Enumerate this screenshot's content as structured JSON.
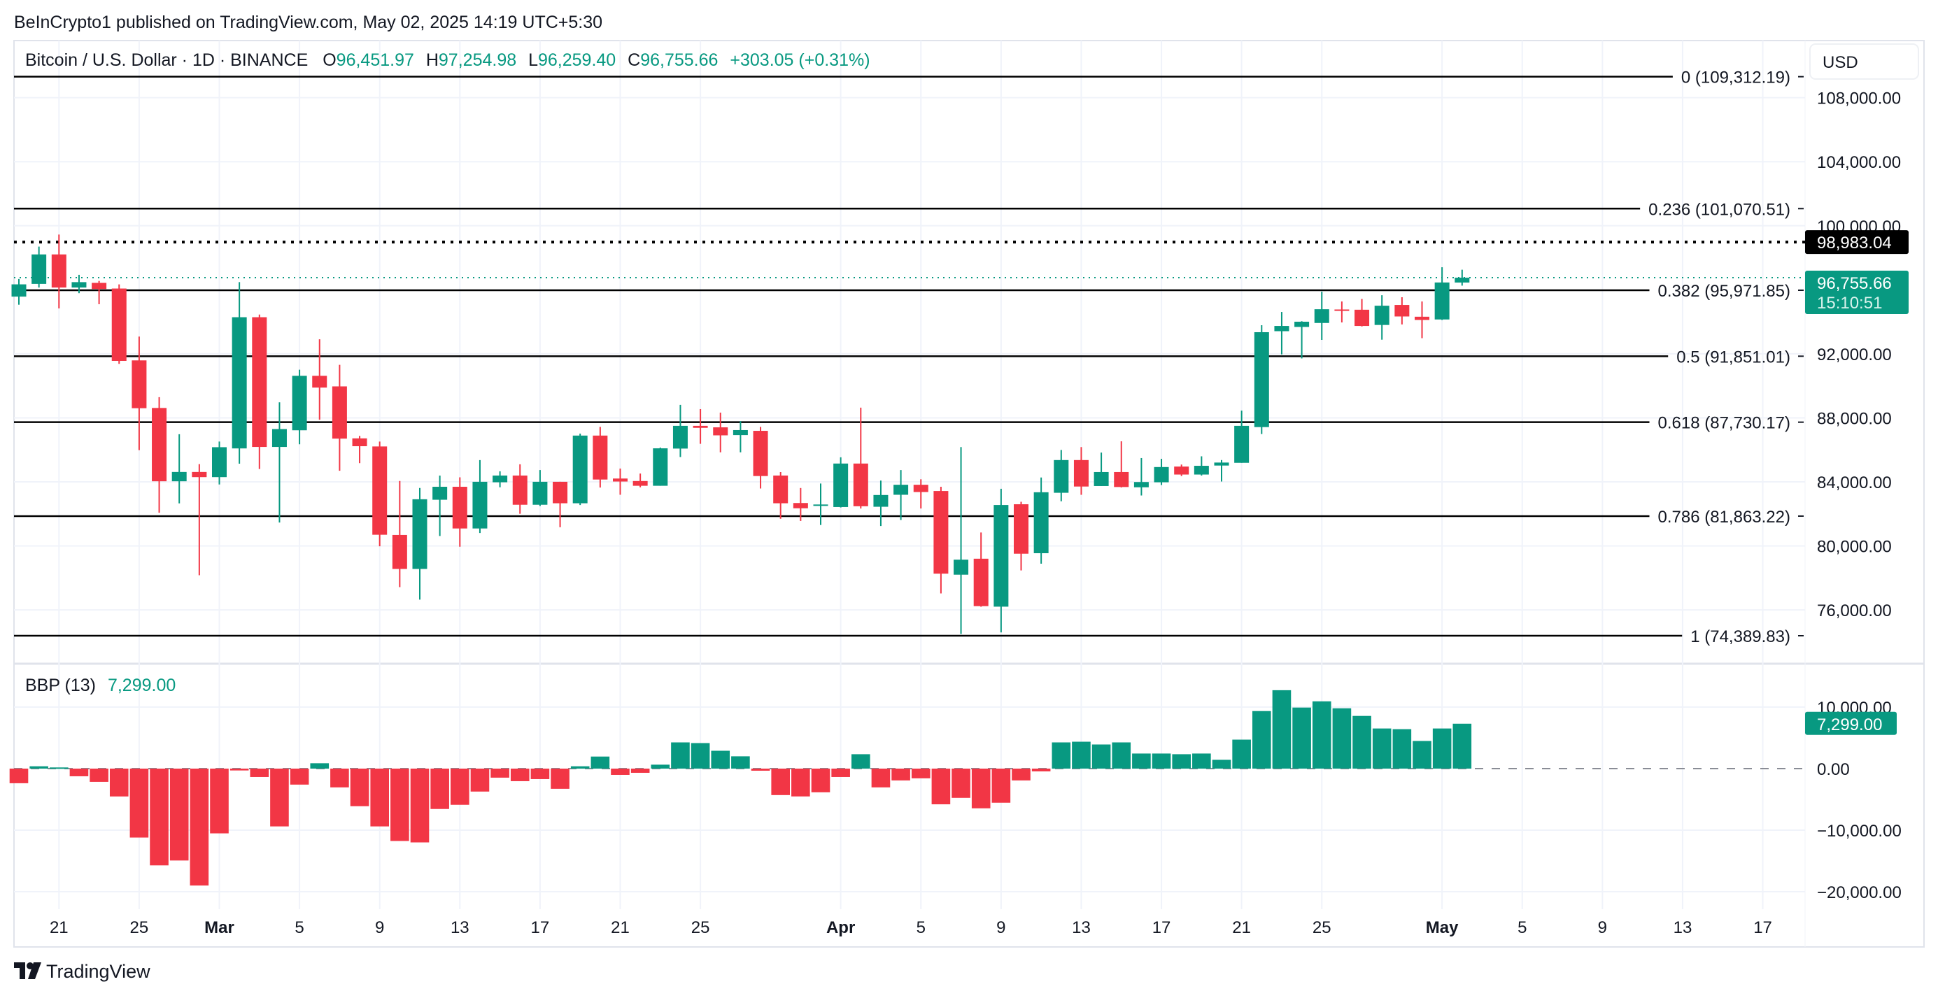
{
  "header": {
    "published": "BeInCrypto1 published on TradingView.com, May 02, 2025 14:19 UTC+5:30"
  },
  "legend": {
    "symbol": "Bitcoin / U.S. Dollar · 1D · BINANCE",
    "o_label": "O",
    "o_value": "96,451.97",
    "h_label": "H",
    "h_value": "97,254.98",
    "l_label": "L",
    "l_value": "96,259.40",
    "c_label": "C",
    "c_value": "96,755.66",
    "change": "+303.05 (+0.31%)"
  },
  "currency_button": "USD",
  "price_labels": {
    "dotted_level": "98,983.04",
    "last_price": "96,755.66",
    "countdown": "15:10:51"
  },
  "indicator": {
    "name": "BBP (13)",
    "value": "7,299.00",
    "last_label": "7,299.00"
  },
  "footer": {
    "logo_text": "TradingView"
  },
  "colors": {
    "up": "#089981",
    "down": "#f23645",
    "fib_line": "#000000",
    "grid": "#f0f3fa"
  },
  "chart_data": [
    {
      "type": "candlestick",
      "title": "Bitcoin / U.S. Dollar · 1D · BINANCE",
      "ylim": [
        73000,
        111000
      ],
      "y_ticks": [
        108000,
        104000,
        100000,
        92000,
        88000,
        84000,
        80000,
        76000
      ],
      "y_tick_labels": [
        "108,000.00",
        "104,000.00",
        "100,000.00",
        "92,000.00",
        "88,000.00",
        "84,000.00",
        "80,000.00",
        "76,000.00"
      ],
      "x_tick_labels": [
        {
          "label": "21",
          "date": "2025-02-21"
        },
        {
          "label": "25",
          "date": "2025-02-25"
        },
        {
          "label": "Mar",
          "date": "2025-03-01",
          "bold": true
        },
        {
          "label": "5",
          "date": "2025-03-05"
        },
        {
          "label": "9",
          "date": "2025-03-09"
        },
        {
          "label": "13",
          "date": "2025-03-13"
        },
        {
          "label": "17",
          "date": "2025-03-17"
        },
        {
          "label": "21",
          "date": "2025-03-21"
        },
        {
          "label": "25",
          "date": "2025-03-25"
        },
        {
          "label": "Apr",
          "date": "2025-04-01",
          "bold": true
        },
        {
          "label": "5",
          "date": "2025-04-05"
        },
        {
          "label": "9",
          "date": "2025-04-09"
        },
        {
          "label": "13",
          "date": "2025-04-13"
        },
        {
          "label": "17",
          "date": "2025-04-17"
        },
        {
          "label": "21",
          "date": "2025-04-21"
        },
        {
          "label": "25",
          "date": "2025-04-25"
        },
        {
          "label": "May",
          "date": "2025-05-01",
          "bold": true
        },
        {
          "label": "5",
          "date": "2025-05-05"
        },
        {
          "label": "9",
          "date": "2025-05-09"
        },
        {
          "label": "13",
          "date": "2025-05-13"
        },
        {
          "label": "17",
          "date": "2025-05-17"
        }
      ],
      "fib_levels": [
        {
          "label": "0 (109,312.19)",
          "price": 109312.19
        },
        {
          "label": "0.236 (101,070.51)",
          "price": 101070.51
        },
        {
          "label": "0.382 (95,971.85)",
          "price": 95971.85
        },
        {
          "label": "0.5 (91,851.01)",
          "price": 91851.01
        },
        {
          "label": "0.618 (87,730.17)",
          "price": 87730.17
        },
        {
          "label": "0.786 (81,863.22)",
          "price": 81863.22
        },
        {
          "label": "1 (74,389.83)",
          "price": 74389.83
        }
      ],
      "dotted_level_price": 98983.04,
      "last_price": 96755.66,
      "dates": [
        "2025-02-19",
        "2025-02-20",
        "2025-02-21",
        "2025-02-22",
        "2025-02-23",
        "2025-02-24",
        "2025-02-25",
        "2025-02-26",
        "2025-02-27",
        "2025-02-28",
        "2025-03-01",
        "2025-03-02",
        "2025-03-03",
        "2025-03-04",
        "2025-03-05",
        "2025-03-06",
        "2025-03-07",
        "2025-03-08",
        "2025-03-09",
        "2025-03-10",
        "2025-03-11",
        "2025-03-12",
        "2025-03-13",
        "2025-03-14",
        "2025-03-15",
        "2025-03-16",
        "2025-03-17",
        "2025-03-18",
        "2025-03-19",
        "2025-03-20",
        "2025-03-21",
        "2025-03-22",
        "2025-03-23",
        "2025-03-24",
        "2025-03-25",
        "2025-03-26",
        "2025-03-27",
        "2025-03-28",
        "2025-03-29",
        "2025-03-30",
        "2025-03-31",
        "2025-04-01",
        "2025-04-02",
        "2025-04-03",
        "2025-04-04",
        "2025-04-05",
        "2025-04-06",
        "2025-04-07",
        "2025-04-08",
        "2025-04-09",
        "2025-04-10",
        "2025-04-11",
        "2025-04-12",
        "2025-04-13",
        "2025-04-14",
        "2025-04-15",
        "2025-04-16",
        "2025-04-17",
        "2025-04-18",
        "2025-04-19",
        "2025-04-20",
        "2025-04-21",
        "2025-04-22",
        "2025-04-23",
        "2025-04-24",
        "2025-04-25",
        "2025-04-26",
        "2025-04-27",
        "2025-04-28",
        "2025-04-29",
        "2025-04-30",
        "2025-05-01",
        "2025-05-02"
      ],
      "ohlc_order": [
        "open",
        "high",
        "low",
        "close"
      ],
      "ohlc": [
        [
          95574,
          96677,
          95068,
          96340
        ],
        [
          96370,
          98699,
          96140,
          98209
        ],
        [
          98209,
          99450,
          94838,
          96140
        ],
        [
          96140,
          96937,
          95788,
          96478
        ],
        [
          96432,
          96554,
          95099,
          96049
        ],
        [
          96079,
          96340,
          91376,
          91560
        ],
        [
          91590,
          93076,
          85983,
          88603
        ],
        [
          88618,
          89293,
          82076,
          84038
        ],
        [
          84038,
          86979,
          82659,
          84620
        ],
        [
          84620,
          85110,
          78170,
          84298
        ],
        [
          84298,
          86520,
          83839,
          86167
        ],
        [
          86091,
          96478,
          85140,
          94287
        ],
        [
          94287,
          94455,
          84804,
          86183
        ],
        [
          86183,
          88971,
          81464,
          87301
        ],
        [
          87224,
          91008,
          86351,
          90625
        ],
        [
          90625,
          92908,
          87883,
          89890
        ],
        [
          89966,
          91315,
          84696,
          86703
        ],
        [
          86719,
          86872,
          85171,
          86229
        ],
        [
          86213,
          86520,
          79978,
          80698
        ],
        [
          80684,
          84054,
          77424,
          78562
        ],
        [
          78562,
          83617,
          76644,
          82915
        ],
        [
          82884,
          84397,
          80622,
          83695
        ],
        [
          83695,
          84288,
          79951,
          81090
        ],
        [
          81090,
          85364,
          80809,
          84007
        ],
        [
          83976,
          84662,
          83663,
          84397
        ],
        [
          84397,
          85099,
          82010,
          82572
        ],
        [
          82572,
          84740,
          82494,
          84007
        ],
        [
          84007,
          84007,
          81168,
          82665
        ],
        [
          82665,
          87018,
          82556,
          86893
        ],
        [
          86893,
          87439,
          83648,
          84147
        ],
        [
          84210,
          84834,
          83196,
          84022
        ],
        [
          84054,
          84522,
          83663,
          83757
        ],
        [
          83757,
          86144,
          83757,
          86097
        ],
        [
          86081,
          88812,
          85551,
          87501
        ],
        [
          87501,
          88546,
          86378,
          87376
        ],
        [
          87408,
          88328,
          85848,
          86908
        ],
        [
          86924,
          87798,
          85848,
          87236
        ],
        [
          87189,
          87439,
          83585,
          84366
        ],
        [
          84397,
          84615,
          81698,
          82665
        ],
        [
          82681,
          83617,
          81558,
          82353
        ],
        [
          82525,
          83898,
          81308,
          82588
        ],
        [
          82431,
          85536,
          82400,
          85146
        ],
        [
          85146,
          88640,
          82338,
          82478
        ],
        [
          82447,
          84085,
          81246,
          83180
        ],
        [
          83196,
          84740,
          81620,
          83820
        ],
        [
          83820,
          84163,
          82338,
          83367
        ],
        [
          83430,
          83695,
          77034,
          78266
        ],
        [
          78204,
          86175,
          74500,
          79140
        ],
        [
          79202,
          80840,
          76206,
          76238
        ],
        [
          76206,
          83570,
          74600,
          82556
        ],
        [
          82603,
          82759,
          78469,
          79514
        ],
        [
          79545,
          84272,
          78891,
          83352
        ],
        [
          83320,
          85996,
          82790,
          85364
        ],
        [
          85364,
          86175,
          83196,
          83710
        ],
        [
          83741,
          85832,
          83741,
          84615
        ],
        [
          84615,
          86534,
          83650,
          83680
        ],
        [
          83664,
          85489,
          83149,
          83992
        ],
        [
          83976,
          85442,
          83804,
          84927
        ],
        [
          84958,
          85083,
          84366,
          84459
        ],
        [
          84459,
          85598,
          84397,
          85005
        ],
        [
          85021,
          85364,
          84022,
          85208
        ],
        [
          85192,
          88453,
          85192,
          87501
        ],
        [
          87423,
          93788,
          86986,
          93351
        ],
        [
          93414,
          94615,
          91963,
          93741
        ],
        [
          93678,
          94037,
          91713,
          94006
        ],
        [
          93928,
          95878,
          92868,
          94786
        ],
        [
          94770,
          95270,
          93960,
          94724
        ],
        [
          94755,
          95426,
          93710,
          93741
        ],
        [
          93803,
          95660,
          92883,
          95005
        ],
        [
          95052,
          95535,
          93835,
          94334
        ],
        [
          94318,
          95270,
          92977,
          94115
        ],
        [
          94146,
          97407,
          94115,
          96456
        ],
        [
          96451.97,
          97254.98,
          96259.4,
          96755.66
        ]
      ]
    },
    {
      "type": "bar",
      "title": "BBP (13)",
      "ylim": [
        -22000,
        14500
      ],
      "y_ticks": [
        10000,
        0,
        -10000,
        -20000
      ],
      "y_tick_labels": [
        "10,000.00",
        "0.00",
        "−10,000.00",
        "−20,000.00"
      ],
      "values": [
        -2375,
        377,
        190,
        -1245,
        -2150,
        -4525,
        -11200,
        -15720,
        -14930,
        -19000,
        -10520,
        -300,
        -1360,
        -9390,
        -2600,
        870,
        -3050,
        -6110,
        -9390,
        -11760,
        -11990,
        -6560,
        -5880,
        -3730,
        -1470,
        -2040,
        -1700,
        -3280,
        377,
        1960,
        -1020,
        -680,
        640,
        4260,
        4150,
        2900,
        2000,
        -340,
        -4300,
        -4520,
        -3850,
        -1360,
        2340,
        -3050,
        -1920,
        -1580,
        -5800,
        -4750,
        -6450,
        -5540,
        -1920,
        -450,
        4260,
        4370,
        3920,
        4260,
        2450,
        2450,
        2340,
        2450,
        1430,
        4710,
        9350,
        12740,
        9920,
        10930,
        9800,
        8560,
        6520,
        6410,
        4490,
        6520,
        7299
      ]
    }
  ]
}
